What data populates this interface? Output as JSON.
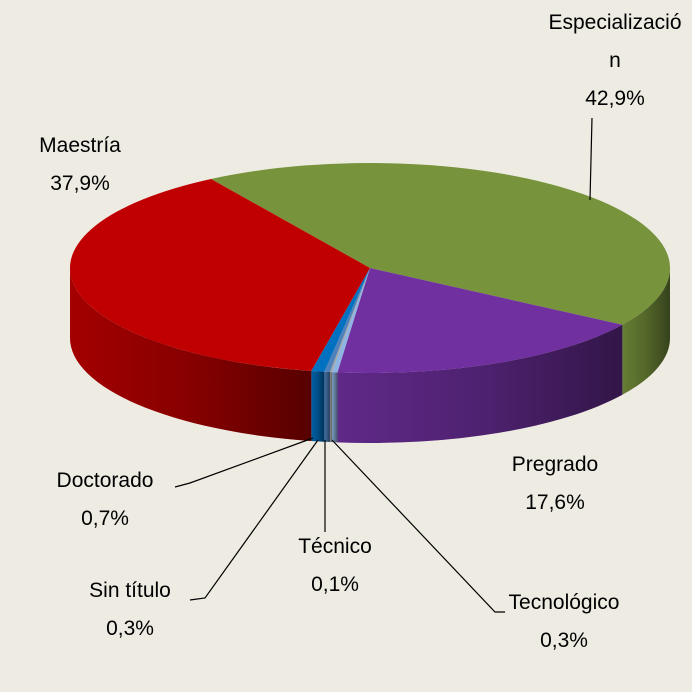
{
  "chart_data": {
    "type": "pie3d",
    "categories": [
      "Especialización",
      "Pregrado",
      "Tecnológico",
      "Técnico",
      "Sin título",
      "Doctorado",
      "Maestría"
    ],
    "values": [
      42.9,
      17.6,
      0.3,
      0.1,
      0.3,
      0.7,
      37.9
    ],
    "value_labels": [
      "42,9%",
      "17,6%",
      "0,3%",
      "0,1%",
      "0,3%",
      "0,7%",
      "37,9%"
    ],
    "colors": [
      "#77933c",
      "#7030a0",
      "#8eb4e3",
      "#a5a5a5",
      "#4f81bd",
      "#0070c0",
      "#c00000"
    ]
  }
}
